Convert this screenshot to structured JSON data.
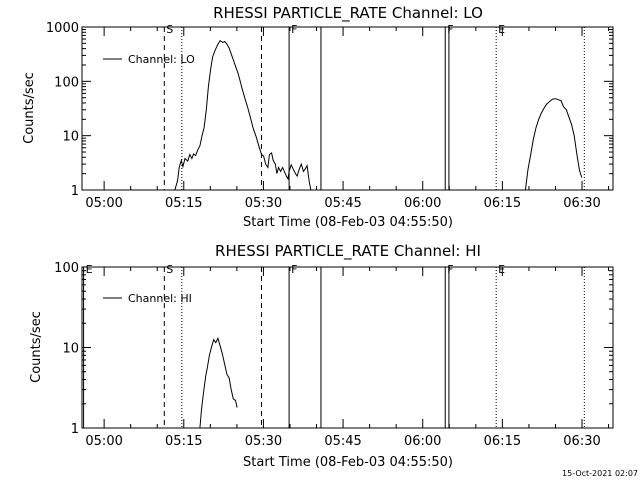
{
  "footer": {
    "timestamp": "15-Oct-2021 02:07"
  },
  "chart_data": [
    {
      "type": "line",
      "title": "RHESSI PARTICLE_RATE Channel: LO",
      "xlabel": "Start Time (08-Feb-03 04:55:50)",
      "ylabel": "Counts/sec",
      "x_tick_labels": [
        "05:00",
        "05:15",
        "05:30",
        "05:45",
        "06:00",
        "06:15",
        "06:30"
      ],
      "x_tick_minutes": [
        4.167,
        19.167,
        34.167,
        49.167,
        64.167,
        79.167,
        94.167
      ],
      "xlim": [
        0,
        100
      ],
      "y_scale": "log",
      "ylim": [
        1,
        1000
      ],
      "y_tick_labels": [
        "1",
        "10",
        "100",
        "1000"
      ],
      "y_tick_values": [
        1,
        10,
        100,
        1000
      ],
      "legend": {
        "placement": "top-left",
        "entries": [
          "Channel: LO"
        ]
      },
      "markers": [
        {
          "label": "S",
          "x": 15.5,
          "style": "dashed"
        },
        {
          "label": "",
          "x": 18.8,
          "style": "dotted"
        },
        {
          "label": "",
          "x": 33.8,
          "style": "dashed"
        },
        {
          "label": "F",
          "x": 39.0,
          "style": "solid"
        },
        {
          "label": "",
          "x": 45.0,
          "style": "solid"
        },
        {
          "label": "F",
          "x": 68.4,
          "style": "solid"
        },
        {
          "label": "",
          "x": 69.1,
          "style": "solid"
        },
        {
          "label": "E",
          "x": 78.0,
          "style": "dotted"
        },
        {
          "label": "",
          "x": 94.6,
          "style": "dotted"
        }
      ],
      "series": [
        {
          "segments": [
            [
              [
                17.5,
                1
              ],
              [
                18.0,
                1.5
              ],
              [
                18.3,
                2.6
              ],
              [
                18.7,
                3.5
              ],
              [
                19.0,
                2.7
              ],
              [
                19.4,
                3.8
              ],
              [
                19.9,
                3.4
              ],
              [
                20.3,
                4.5
              ],
              [
                20.7,
                3.8
              ],
              [
                21.0,
                4.6
              ],
              [
                21.4,
                4.3
              ],
              [
                21.8,
                5.5
              ],
              [
                22.2,
                6.5
              ],
              [
                22.6,
                10
              ],
              [
                23.0,
                14
              ],
              [
                23.4,
                30
              ],
              [
                23.8,
                80
              ],
              [
                24.2,
                160
              ],
              [
                24.6,
                280
              ],
              [
                25.1,
                380
              ],
              [
                25.6,
                480
              ],
              [
                26.0,
                560
              ],
              [
                26.5,
                520
              ],
              [
                26.9,
                540
              ],
              [
                27.3,
                480
              ],
              [
                27.7,
                410
              ],
              [
                28.1,
                320
              ],
              [
                28.5,
                250
              ],
              [
                28.9,
                190
              ],
              [
                29.4,
                140
              ],
              [
                29.8,
                100
              ],
              [
                30.2,
                70
              ],
              [
                30.7,
                48
              ],
              [
                31.2,
                33
              ],
              [
                31.7,
                22
              ],
              [
                32.2,
                14
              ],
              [
                32.8,
                9.5
              ],
              [
                33.3,
                6.5
              ],
              [
                33.8,
                4.5
              ],
              [
                34.2,
                4.2
              ],
              [
                34.6,
                3.0
              ],
              [
                35.0,
                2.6
              ],
              [
                35.3,
                4.5
              ],
              [
                35.7,
                4.8
              ],
              [
                36.0,
                3.5
              ],
              [
                36.4,
                3.0
              ],
              [
                36.7,
                2.0
              ],
              [
                37.0,
                2.6
              ],
              [
                37.4,
                2.2
              ],
              [
                37.8,
                2.6
              ],
              [
                38.1,
                2.2
              ],
              [
                38.5,
                1.8
              ],
              [
                38.8,
                1.6
              ],
              [
                39.0,
                2.2
              ],
              [
                39.4,
                2.9
              ],
              [
                39.8,
                2.4
              ],
              [
                40.2,
                2.0
              ],
              [
                40.5,
                1.8
              ],
              [
                40.9,
                2.4
              ],
              [
                41.3,
                3.0
              ],
              [
                41.7,
                2.2
              ],
              [
                42.0,
                2.4
              ],
              [
                42.4,
                2.8
              ],
              [
                42.8,
                1.4
              ],
              [
                43.1,
                1.0
              ]
            ],
            [
              [
                83.5,
                1
              ],
              [
                84.0,
                2.4
              ],
              [
                84.5,
                4.5
              ],
              [
                85.0,
                8.5
              ],
              [
                85.5,
                14
              ],
              [
                86.0,
                20
              ],
              [
                86.5,
                26
              ],
              [
                87.0,
                32
              ],
              [
                87.5,
                38
              ],
              [
                88.0,
                42
              ],
              [
                88.6,
                47
              ],
              [
                89.2,
                48
              ],
              [
                89.7,
                46
              ],
              [
                90.2,
                44
              ],
              [
                90.7,
                34
              ],
              [
                91.2,
                30
              ],
              [
                91.7,
                22
              ],
              [
                92.2,
                16
              ],
              [
                92.7,
                10
              ],
              [
                93.2,
                4.5
              ],
              [
                93.7,
                2.3
              ],
              [
                94.1,
                1.7
              ]
            ]
          ]
        }
      ]
    },
    {
      "type": "line",
      "title": "RHESSI PARTICLE_RATE Channel: HI",
      "xlabel": "Start Time (08-Feb-03 04:55:50)",
      "ylabel": "Counts/sec",
      "x_tick_labels": [
        "05:00",
        "05:15",
        "05:30",
        "05:45",
        "06:00",
        "06:15",
        "06:30"
      ],
      "x_tick_minutes": [
        4.167,
        19.167,
        34.167,
        49.167,
        64.167,
        79.167,
        94.167
      ],
      "xlim": [
        0,
        100
      ],
      "y_scale": "log",
      "ylim": [
        1,
        100
      ],
      "y_tick_labels": [
        "1",
        "10",
        "100"
      ],
      "y_tick_values": [
        1,
        10,
        100
      ],
      "legend": {
        "placement": "top-left",
        "entries": [
          "Channel: HI"
        ]
      },
      "markers": [
        {
          "label": "E",
          "x": 0.3,
          "style": "solid"
        },
        {
          "label": "S",
          "x": 15.5,
          "style": "dashed"
        },
        {
          "label": "",
          "x": 18.8,
          "style": "dotted"
        },
        {
          "label": "",
          "x": 33.8,
          "style": "dashed"
        },
        {
          "label": "F",
          "x": 39.0,
          "style": "solid"
        },
        {
          "label": "",
          "x": 45.0,
          "style": "solid"
        },
        {
          "label": "F",
          "x": 68.4,
          "style": "solid"
        },
        {
          "label": "",
          "x": 69.1,
          "style": "solid"
        },
        {
          "label": "E",
          "x": 78.0,
          "style": "dotted"
        },
        {
          "label": "",
          "x": 94.6,
          "style": "dotted"
        }
      ],
      "series": [
        {
          "segments": [
            [
              [
                22.2,
                1
              ],
              [
                22.5,
                1.7
              ],
              [
                22.9,
                2.8
              ],
              [
                23.3,
                4.4
              ],
              [
                23.6,
                5.6
              ],
              [
                24.0,
                8.0
              ],
              [
                24.4,
                10.2
              ],
              [
                24.8,
                12.5
              ],
              [
                25.2,
                11.5
              ],
              [
                25.6,
                13.0
              ],
              [
                26.0,
                10.5
              ],
              [
                26.4,
                8.5
              ],
              [
                26.8,
                6.5
              ],
              [
                27.3,
                4.6
              ],
              [
                27.7,
                4.2
              ],
              [
                28.1,
                3.0
              ],
              [
                28.5,
                2.3
              ],
              [
                28.9,
                2.2
              ],
              [
                29.2,
                1.8
              ]
            ]
          ]
        }
      ]
    }
  ]
}
